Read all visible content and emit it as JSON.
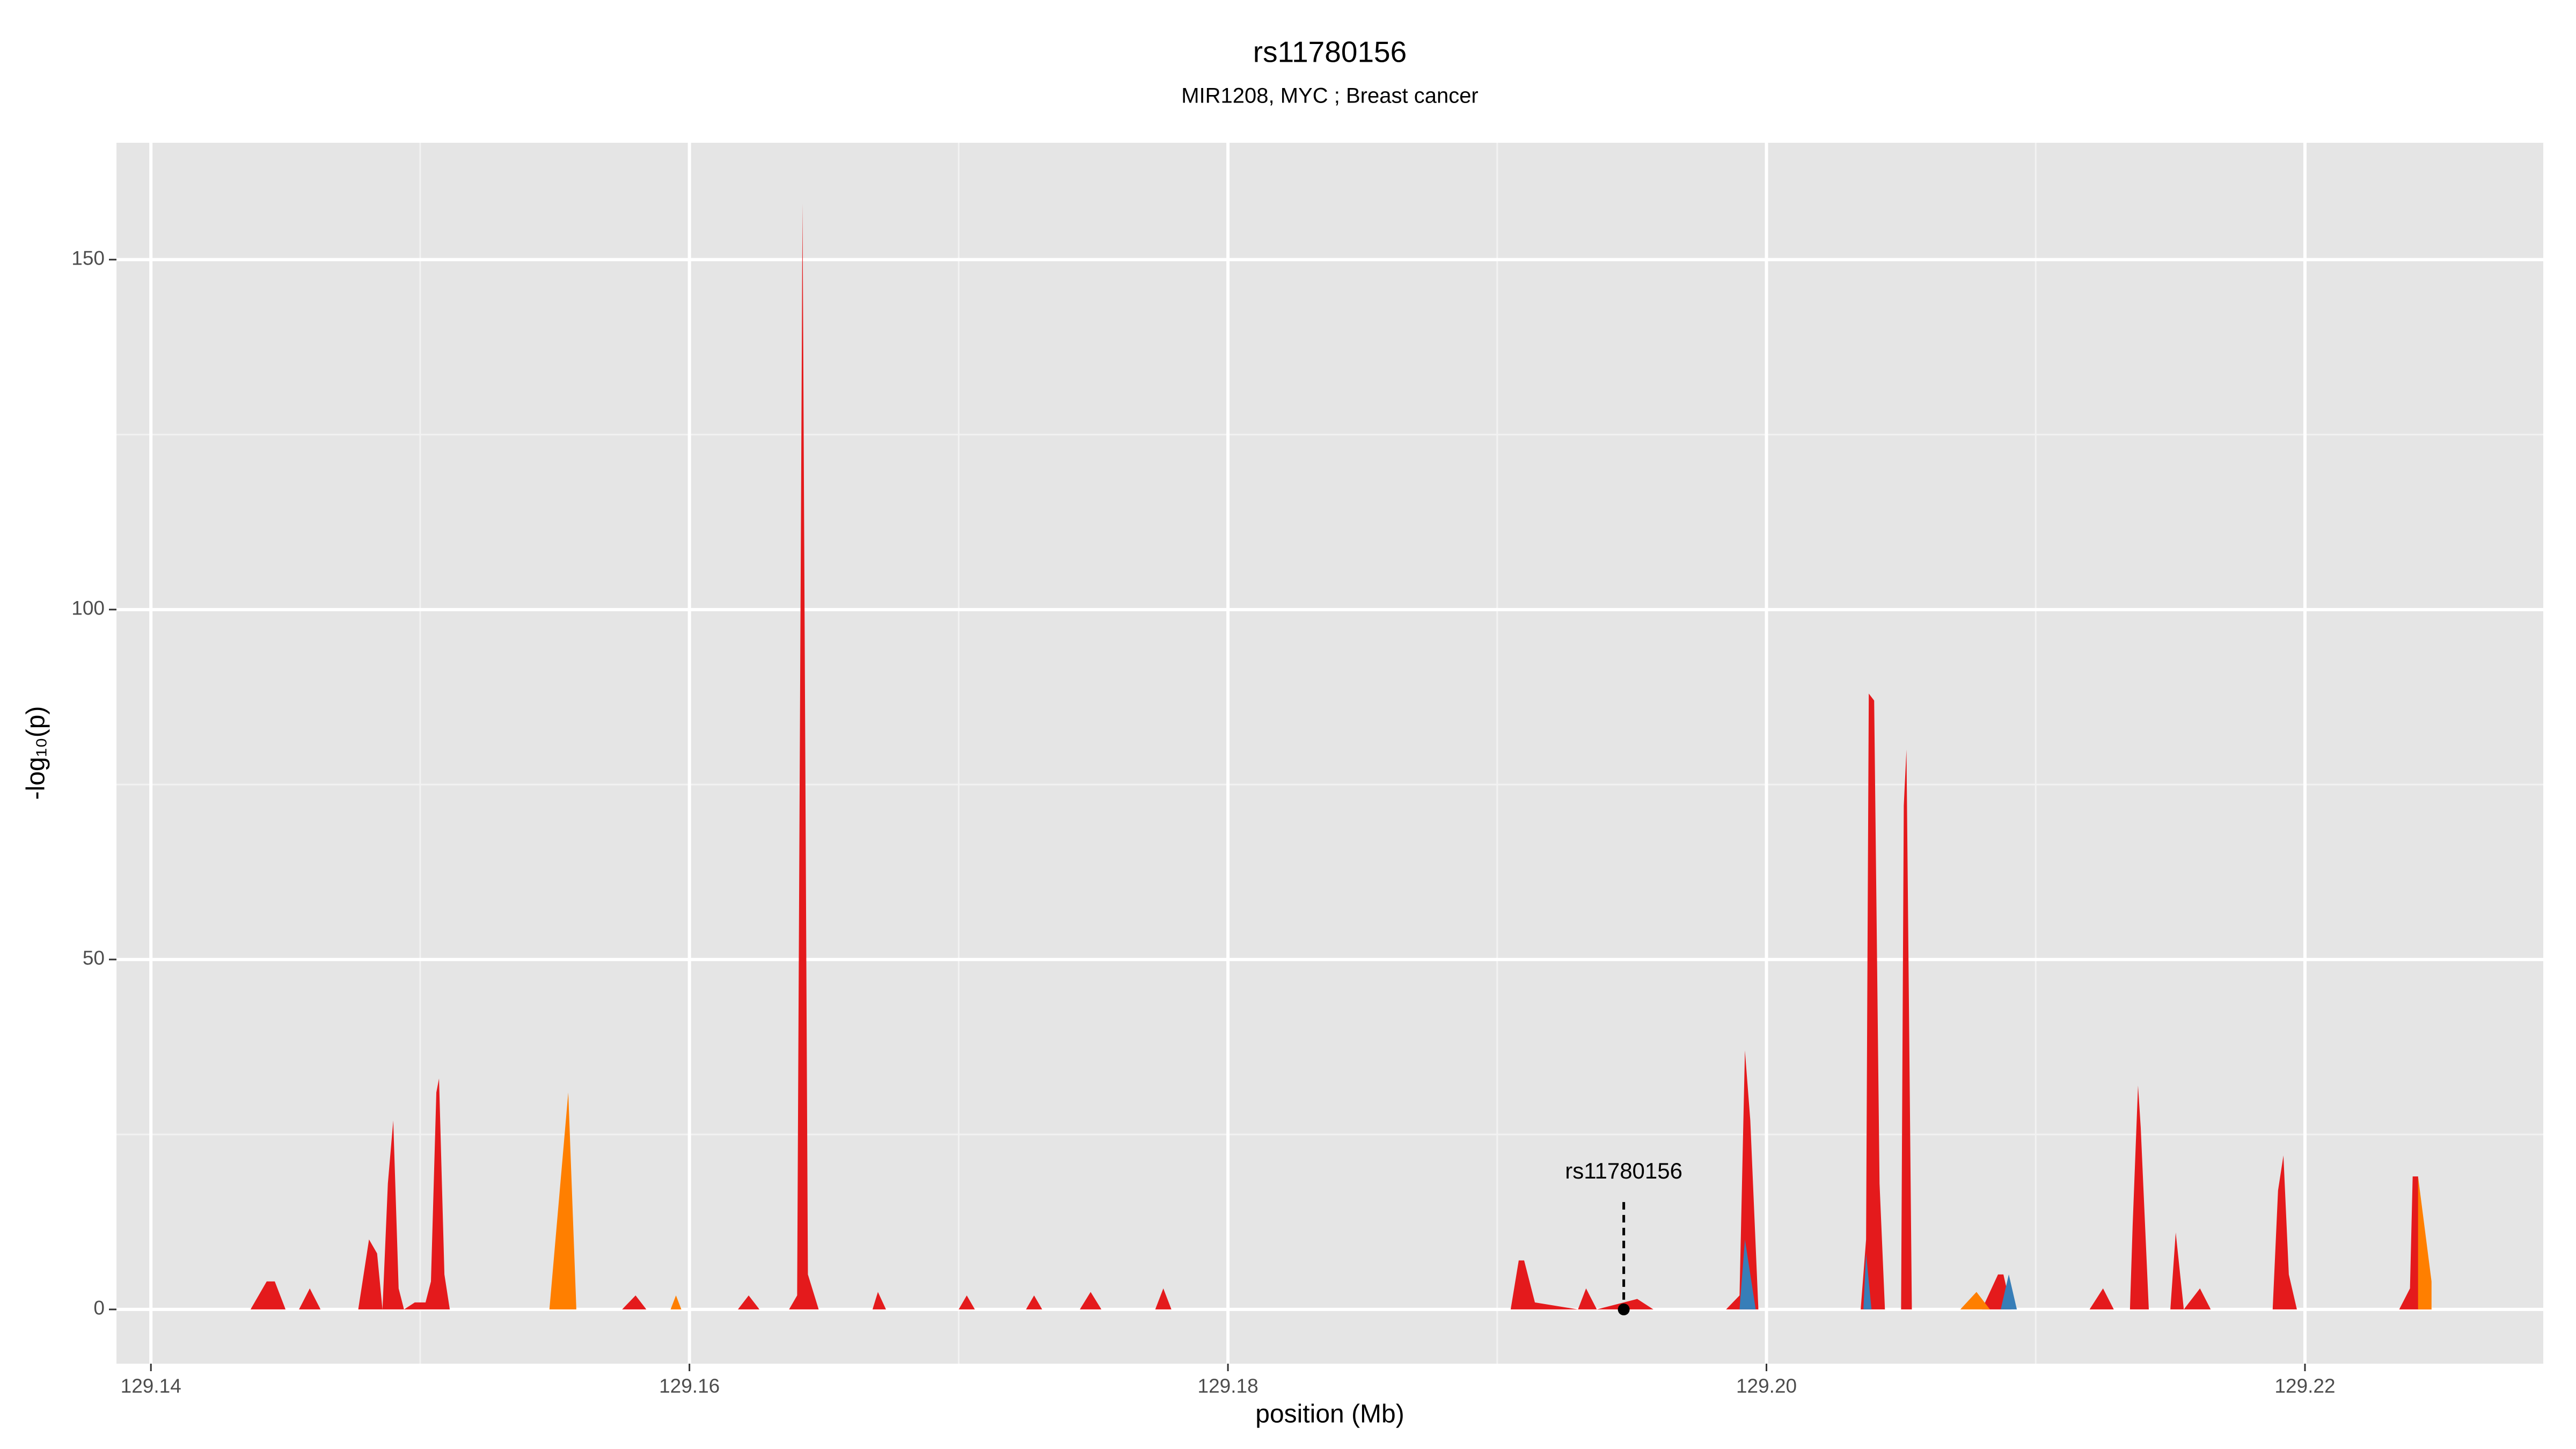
{
  "chart_data": {
    "type": "area",
    "title": "rs11780156",
    "subtitle": "MIR1208, MYC ; Breast cancer",
    "x_label": "position (Mb)",
    "y_label": "-log₁₀(p)",
    "xlim": [
      129.13872,
      129.22885
    ],
    "ylim": [
      -7.75,
      166.7
    ],
    "xticks": [
      129.14,
      129.16,
      129.18,
      {
        "value": 129.2,
        "label": "129.20"
      },
      129.22
    ],
    "x_minor_ticks": [
      129.15,
      129.17,
      129.19,
      129.21
    ],
    "yticks": [
      0,
      50,
      100,
      150
    ],
    "y_minor_ticks": [
      25,
      75,
      125
    ],
    "grid": true,
    "series": [
      {
        "color": "#e41a1c",
        "x": [
          129.1428,
          129.1437,
          129.1443,
          129.1446,
          129.145,
          129.1455,
          129.1459,
          129.1463,
          129.1477,
          129.1481,
          129.1484,
          129.1486,
          129.1488,
          129.149,
          129.1492,
          129.1494,
          129.1498,
          129.1502,
          129.1504,
          129.1506,
          129.1507,
          129.1509,
          129.1511,
          129.153,
          129.155,
          129.1556,
          129.1575,
          129.158,
          129.1584,
          129.1618,
          129.1622,
          129.1626,
          129.1637,
          129.164,
          129.1642,
          129.1644,
          129.1648,
          129.1668,
          129.167,
          129.1673,
          129.17,
          129.1703,
          129.1706,
          129.1725,
          129.1728,
          129.1731,
          129.1745,
          129.1749,
          129.1753,
          129.1773,
          129.1776,
          129.1779,
          129.1905,
          129.1908,
          129.191,
          129.1914,
          129.193,
          129.1933,
          129.1937,
          129.1952,
          129.1958,
          129.1985,
          129.199,
          129.1992,
          129.1994,
          129.1997,
          129.2035,
          129.2037,
          129.2038,
          129.204,
          129.2042,
          129.2044,
          129.205,
          129.2051,
          129.2052,
          129.2054,
          129.208,
          129.2086,
          129.2088,
          129.2091,
          129.212,
          129.2125,
          129.2129,
          129.2135,
          129.2136,
          129.2138,
          129.2139,
          129.2142,
          129.215,
          129.2152,
          129.2155,
          129.2161,
          129.2165,
          129.2188,
          129.219,
          129.2192,
          129.2194,
          129.2197,
          129.2235,
          129.2239,
          129.224,
          129.2242,
          129.2245,
          129.2247
        ],
        "values": [
          0,
          0,
          4,
          4,
          0,
          0,
          3,
          0,
          0,
          10,
          8,
          0,
          18,
          27,
          3,
          0,
          1,
          1,
          4,
          31,
          33,
          5,
          0,
          0,
          0,
          0,
          0,
          2,
          0,
          0,
          2,
          0,
          0,
          2,
          158,
          5,
          0,
          0,
          2.5,
          0,
          0,
          2,
          0,
          0,
          2,
          0,
          0,
          2.5,
          0,
          0,
          3,
          0,
          0,
          7,
          7,
          1,
          0,
          3,
          0,
          1.5,
          0,
          0,
          2,
          37,
          27,
          0,
          0,
          10,
          88,
          87,
          18,
          0,
          0,
          72,
          80,
          0,
          0,
          5,
          5,
          0,
          0,
          3,
          0,
          0,
          12,
          32,
          26,
          0,
          0,
          11,
          0,
          3,
          0,
          0,
          17,
          22,
          5,
          0,
          0,
          3,
          19,
          19,
          4,
          0
        ]
      },
      {
        "color": "#ff7f00",
        "x": [
          129.1548,
          129.1555,
          129.1558,
          null,
          129.1593,
          129.1595,
          129.1597,
          null,
          129.2072,
          129.2078,
          129.2083,
          null,
          129.2242,
          129.2242,
          129.2247,
          129.2247
        ],
        "values": [
          0,
          31,
          0,
          null,
          0,
          2,
          0,
          null,
          0,
          2.5,
          0,
          null,
          0,
          19,
          4,
          0
        ]
      },
      {
        "color": "#377eb8",
        "x": [
          129.199,
          129.1992,
          129.1996,
          null,
          129.2036,
          129.2037,
          129.2039,
          null,
          129.2087,
          129.209,
          129.2093
        ],
        "values": [
          0,
          10,
          0,
          null,
          0,
          8,
          0,
          null,
          0,
          5,
          0
        ]
      }
    ],
    "annotation": {
      "label": "rs11780156",
      "x": 129.1947,
      "y": 0
    }
  }
}
